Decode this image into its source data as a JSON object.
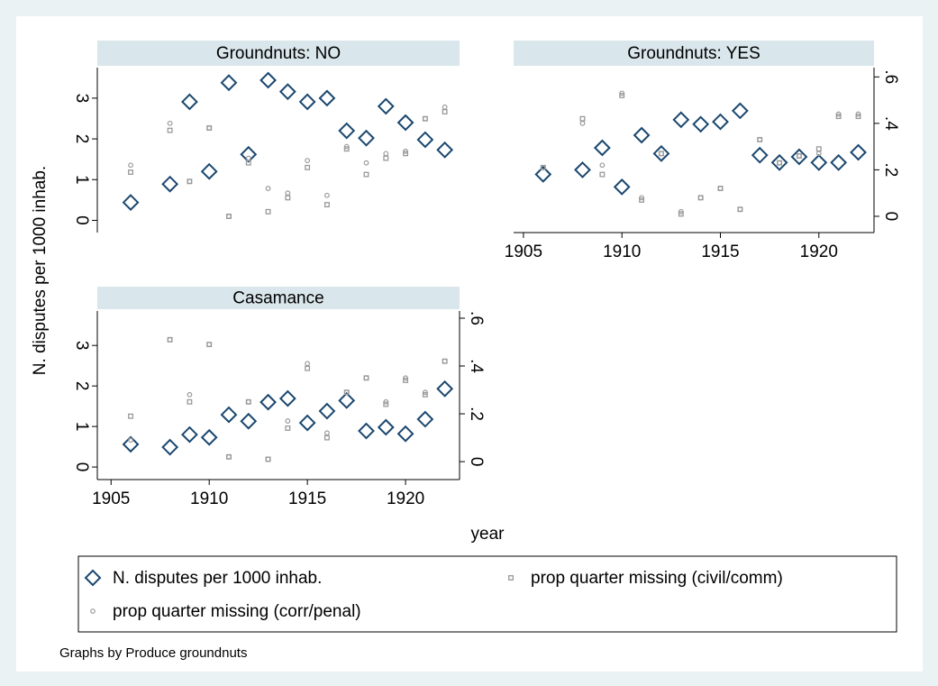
{
  "y_axis_label": "N. disputes per 1000 inhab.",
  "x_axis_label": "year",
  "note": "Graphs by Produce groundnuts",
  "chart_data": [
    {
      "type": "scatter",
      "title": "Groundnuts: NO",
      "x": [
        1906,
        1908,
        1909,
        1910,
        1911,
        1912,
        1913,
        1914,
        1915,
        1916,
        1917,
        1918,
        1919,
        1920,
        1921,
        1922
      ],
      "xlim": [
        1904.3,
        1922.75
      ],
      "ylim": [
        -0.3,
        3.75
      ],
      "yticks": [
        0,
        1,
        2,
        3
      ],
      "y2lim": [
        -0.07,
        0.64
      ],
      "series": [
        {
          "name": "N. disputes per 1000 inhab.",
          "color": "#1a476f",
          "marker": "diamond",
          "values": [
            0.44,
            0.89,
            2.91,
            1.2,
            3.38,
            1.62,
            3.44,
            3.16,
            2.91,
            3.0,
            2.2,
            2.02,
            2.8,
            2.4,
            1.98,
            1.73
          ]
        },
        {
          "name": "prop quarter missing (civil/comm)",
          "color": "#999999",
          "marker": "square",
          "axis": "y2",
          "values": [
            0.19,
            0.37,
            0.15,
            0.38,
            0.0,
            0.23,
            0.02,
            0.08,
            0.21,
            0.05,
            0.29,
            0.18,
            0.25,
            0.27,
            0.42,
            0.45
          ]
        },
        {
          "name": "prop quarter missing (corr/penal)",
          "color": "#999999",
          "marker": "circle",
          "axis": "y2",
          "values": [
            0.22,
            0.4,
            0.15,
            0.38,
            0.0,
            0.25,
            0.12,
            0.1,
            0.24,
            0.09,
            0.3,
            0.23,
            0.27,
            0.28,
            0.42,
            0.47
          ]
        }
      ]
    },
    {
      "type": "scatter",
      "title": "Groundnuts: YES",
      "x": [
        1906,
        1908,
        1909,
        1910,
        1911,
        1912,
        1913,
        1914,
        1915,
        1916,
        1917,
        1918,
        1919,
        1920,
        1921,
        1922
      ],
      "xlim": [
        1904.5,
        1922.8
      ],
      "xticks": [
        1905,
        1910,
        1915,
        1920
      ],
      "ylim": [
        -0.3,
        3.75
      ],
      "y2lim": [
        -0.07,
        0.64
      ],
      "y2ticks": [
        0,
        {
          "value": 0.2,
          "label": ".2"
        },
        {
          "value": 0.4,
          "label": ".4"
        },
        {
          "value": 0.6,
          "label": ".6"
        }
      ],
      "series": [
        {
          "name": "N. disputes per 1000 inhab.",
          "color": "#1a476f",
          "marker": "diamond",
          "values": [
            1.13,
            1.24,
            1.78,
            0.82,
            2.09,
            1.64,
            2.47,
            2.36,
            2.42,
            2.69,
            1.6,
            1.42,
            1.56,
            1.42,
            1.42,
            1.67
          ]
        },
        {
          "name": "prop quarter missing (civil/comm)",
          "color": "#999999",
          "marker": "square",
          "axis": "y2",
          "values": [
            0.21,
            0.42,
            0.18,
            0.52,
            0.07,
            0.27,
            0.01,
            0.08,
            0.12,
            0.03,
            0.33,
            0.23,
            0.26,
            0.29,
            0.43,
            0.43
          ]
        },
        {
          "name": "prop quarter missing (corr/penal)",
          "color": "#999999",
          "marker": "circle",
          "axis": "y2",
          "values": [
            0.21,
            0.4,
            0.22,
            0.53,
            0.08,
            0.27,
            0.02,
            0.08,
            0.12,
            0.03,
            0.33,
            0.23,
            0.26,
            0.27,
            0.44,
            0.44
          ]
        }
      ]
    },
    {
      "type": "scatter",
      "title": "Casamance",
      "x": [
        1906,
        1908,
        1909,
        1910,
        1911,
        1912,
        1913,
        1914,
        1915,
        1916,
        1917,
        1918,
        1919,
        1920,
        1921,
        1922
      ],
      "xlim": [
        1904.3,
        1922.75
      ],
      "xticks": [
        1905,
        1910,
        1915,
        1920
      ],
      "ylim": [
        -0.31,
        3.85
      ],
      "yticks": [
        0,
        1,
        2,
        3
      ],
      "y2lim": [
        -0.075,
        0.63
      ],
      "y2ticks": [
        0,
        {
          "value": 0.2,
          "label": ".2"
        },
        {
          "value": 0.4,
          "label": ".4"
        },
        {
          "value": 0.6,
          "label": ".6"
        }
      ],
      "series": [
        {
          "name": "N. disputes per 1000 inhab.",
          "color": "#1a476f",
          "marker": "diamond",
          "values": [
            0.56,
            0.49,
            0.8,
            0.73,
            1.29,
            1.13,
            1.6,
            1.69,
            1.09,
            1.38,
            1.64,
            0.89,
            0.98,
            0.82,
            1.18,
            1.93
          ]
        },
        {
          "name": "prop quarter missing (civil/comm)",
          "color": "#999999",
          "marker": "square",
          "axis": "y2",
          "values": [
            0.19,
            0.51,
            0.25,
            0.49,
            0.02,
            0.25,
            0.01,
            0.14,
            0.39,
            0.1,
            0.29,
            0.35,
            0.24,
            0.34,
            0.28,
            0.42
          ]
        },
        {
          "name": "prop quarter missing (corr/penal)",
          "color": "#999999",
          "marker": "circle",
          "axis": "y2",
          "values": [
            0.09,
            0.51,
            0.28,
            0.49,
            0.02,
            0.25,
            0.01,
            0.17,
            0.41,
            0.12,
            0.29,
            0.35,
            0.25,
            0.35,
            0.29,
            0.42
          ]
        }
      ]
    }
  ]
}
